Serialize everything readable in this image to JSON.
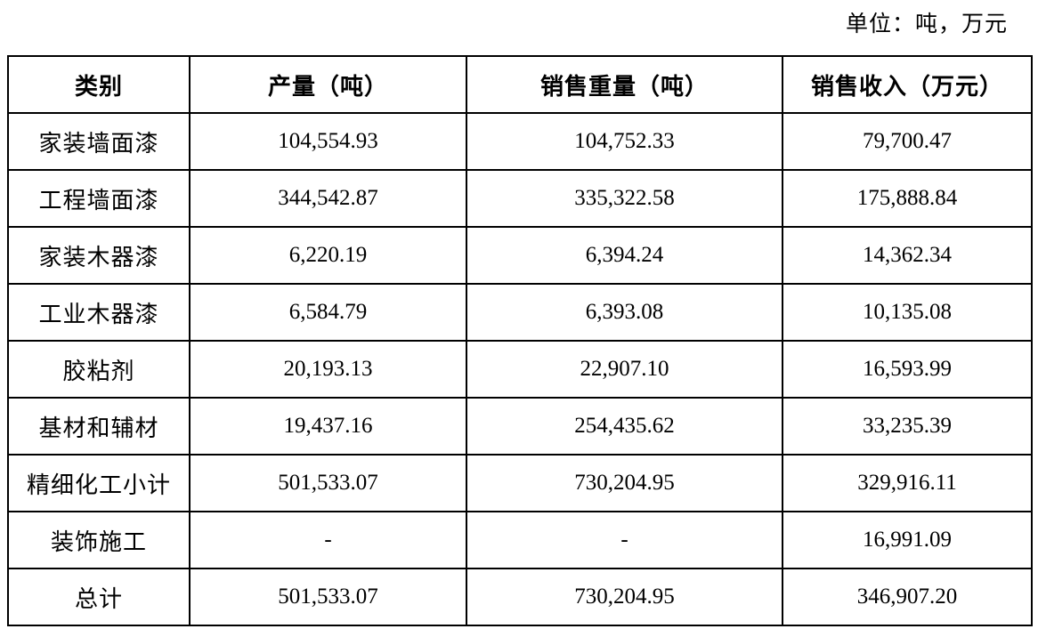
{
  "page": {
    "unit_label": "单位：吨，万元"
  },
  "table": {
    "columns": [
      "类别",
      "产量（吨）",
      "销售重量（吨）",
      "销售收入（万元）"
    ],
    "rows": [
      {
        "category": "家装墙面漆",
        "production": "104,554.93",
        "sales_weight": "104,752.33",
        "sales_revenue": "79,700.47"
      },
      {
        "category": "工程墙面漆",
        "production": "344,542.87",
        "sales_weight": "335,322.58",
        "sales_revenue": "175,888.84"
      },
      {
        "category": "家装木器漆",
        "production": "6,220.19",
        "sales_weight": "6,394.24",
        "sales_revenue": "14,362.34"
      },
      {
        "category": "工业木器漆",
        "production": "6,584.79",
        "sales_weight": "6,393.08",
        "sales_revenue": "10,135.08"
      },
      {
        "category": "胶粘剂",
        "production": "20,193.13",
        "sales_weight": "22,907.10",
        "sales_revenue": "16,593.99"
      },
      {
        "category": "基材和辅材",
        "production": "19,437.16",
        "sales_weight": "254,435.62",
        "sales_revenue": "33,235.39"
      },
      {
        "category": "精细化工小计",
        "production": "501,533.07",
        "sales_weight": "730,204.95",
        "sales_revenue": "329,916.11"
      },
      {
        "category": "装饰施工",
        "production": "-",
        "sales_weight": "-",
        "sales_revenue": "16,991.09"
      },
      {
        "category": "总计",
        "production": "501,533.07",
        "sales_weight": "730,204.95",
        "sales_revenue": "346,907.20"
      }
    ]
  }
}
